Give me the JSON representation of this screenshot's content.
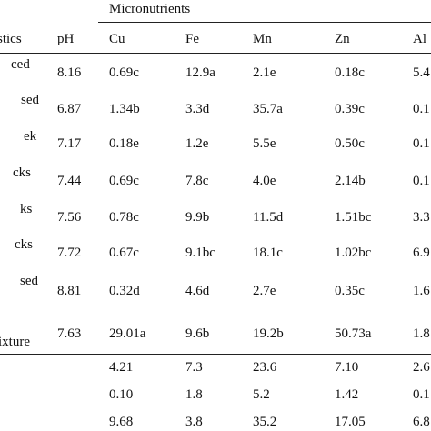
{
  "table": {
    "group_header": "Micronutrients",
    "columns": [
      "stics",
      "pH",
      "Cu",
      "Fe",
      "Mn",
      "Zn",
      "Al"
    ],
    "rows": [
      {
        "label": "ced",
        "values": [
          "8.16",
          "0.69c",
          "12.9a",
          "2.1e",
          "0.18c",
          "5.4"
        ]
      },
      {
        "label": "sed",
        "values": [
          "6.87",
          "1.34b",
          "3.3d",
          "35.7a",
          "0.39c",
          "0.1"
        ]
      },
      {
        "label": "ek",
        "values": [
          "7.17",
          "0.18e",
          "1.2e",
          "5.5e",
          "0.50c",
          "0.1"
        ]
      },
      {
        "label": "cks",
        "values": [
          "7.44",
          "0.69c",
          "7.8c",
          "4.0e",
          "2.14b",
          "0.1"
        ]
      },
      {
        "label": "ks",
        "values": [
          "7.56",
          "0.78c",
          "9.9b",
          "11.5d",
          "1.51bc",
          "3.3"
        ]
      },
      {
        "label": "cks",
        "values": [
          "7.72",
          "0.67c",
          "9.1bc",
          "18.1c",
          "1.02bc",
          "6.9"
        ]
      },
      {
        "label": "sed",
        "values": [
          "8.81",
          "0.32d",
          "4.6d",
          "2.7e",
          "0.35c",
          "1.6"
        ]
      },
      {
        "label": "ixture",
        "values": [
          "7.63",
          "29.01a",
          "9.6b",
          "19.2b",
          "50.73a",
          "1.8"
        ]
      }
    ],
    "summary_rows": [
      {
        "values": [
          "4.21",
          "7.3",
          "23.6",
          "7.10",
          "2.6"
        ]
      },
      {
        "values": [
          "0.10",
          "1.8",
          "5.2",
          "1.42",
          "0.1"
        ]
      },
      {
        "values": [
          "9.68",
          "3.8",
          "35.2",
          "17.05",
          "6.8"
        ]
      }
    ]
  }
}
